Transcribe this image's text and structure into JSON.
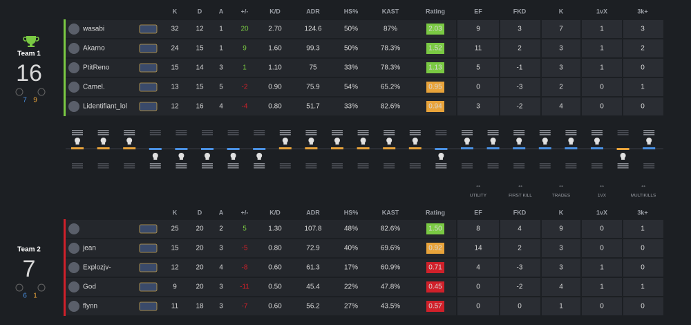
{
  "headers": [
    "K",
    "D",
    "A",
    "+/-",
    "K/D",
    "ADR",
    "HS%",
    "KAST",
    "Rating",
    "EF",
    "FKD",
    "K",
    "1vX",
    "3k+"
  ],
  "categories": [
    "UTILITY",
    "FIRST KILL",
    "TRADES",
    "1VX",
    "MULTIKILLS"
  ],
  "teams": [
    {
      "name": "Team 1",
      "score": "16",
      "side_scores": [
        "7",
        "9"
      ],
      "bar_color": "#7ac943",
      "players": [
        {
          "name": "wasabi",
          "stats": [
            "32",
            "12",
            "1",
            "20",
            "2.70",
            "124.6",
            "50%",
            "87%",
            "2.03",
            "9",
            "3",
            "7",
            "1",
            "3"
          ],
          "rating_color": "#7ac943"
        },
        {
          "name": "Akarno",
          "stats": [
            "24",
            "15",
            "1",
            "9",
            "1.60",
            "99.3",
            "50%",
            "78.3%",
            "1.52",
            "11",
            "2",
            "3",
            "1",
            "2"
          ],
          "rating_color": "#7ac943"
        },
        {
          "name": "PtitReno",
          "stats": [
            "15",
            "14",
            "3",
            "1",
            "1.10",
            "75",
            "33%",
            "78.3%",
            "1.13",
            "5",
            "-1",
            "3",
            "1",
            "0"
          ],
          "rating_color": "#7ac943"
        },
        {
          "name": "Camel.",
          "stats": [
            "13",
            "15",
            "5",
            "-2",
            "0.90",
            "75.9",
            "54%",
            "65.2%",
            "0.95",
            "0",
            "-3",
            "2",
            "0",
            "1"
          ],
          "rating_color": "#e8a33a"
        },
        {
          "name": "Lidentifiant_lol",
          "stats": [
            "12",
            "16",
            "4",
            "-4",
            "0.80",
            "51.7",
            "33%",
            "82.6%",
            "0.94",
            "3",
            "-2",
            "4",
            "0",
            "0"
          ],
          "rating_color": "#e8a33a"
        }
      ]
    },
    {
      "name": "Team 2",
      "score": "7",
      "side_scores": [
        "6",
        "1"
      ],
      "bar_color": "#d0202a",
      "players": [
        {
          "stats": [
            "25",
            "20",
            "2",
            "5",
            "1.30",
            "107.8",
            "48%",
            "82.6%",
            "1.50",
            "8",
            "4",
            "9",
            "0",
            "1"
          ],
          "rating_color": "#7ac943"
        },
        {
          "name": "jean",
          "stats": [
            "15",
            "20",
            "3",
            "-5",
            "0.80",
            "72.9",
            "40%",
            "69.6%",
            "0.92",
            "14",
            "2",
            "3",
            "0",
            "0"
          ],
          "rating_color": "#e8a33a"
        },
        {
          "name": "Explozjv-",
          "stats": [
            "12",
            "20",
            "4",
            "-8",
            "0.60",
            "61.3",
            "17%",
            "60.9%",
            "0.71",
            "4",
            "-3",
            "3",
            "1",
            "0"
          ],
          "rating_color": "#d0202a"
        },
        {
          "name": "God",
          "stats": [
            "9",
            "20",
            "3",
            "-11",
            "0.50",
            "45.4",
            "22%",
            "47.8%",
            "0.45",
            "0",
            "-2",
            "4",
            "1",
            "1"
          ],
          "rating_color": "#d0202a"
        },
        {
          "name": "flynn",
          "stats": [
            "11",
            "18",
            "3",
            "-7",
            "0.60",
            "56.2",
            "27%",
            "43.5%",
            "0.57",
            "0",
            "0",
            "1",
            "0",
            "0"
          ],
          "rating_color": "#d0202a"
        }
      ]
    }
  ],
  "rounds": [
    {
      "winner": 1,
      "color": "#e8a33a"
    },
    {
      "winner": 1,
      "color": "#e8a33a"
    },
    {
      "winner": 1,
      "color": "#e8a33a"
    },
    {
      "winner": 2,
      "color": "#4a90e2"
    },
    {
      "winner": 2,
      "color": "#4a90e2"
    },
    {
      "winner": 2,
      "color": "#4a90e2"
    },
    {
      "winner": 2,
      "color": "#4a90e2"
    },
    {
      "winner": 2,
      "color": "#4a90e2"
    },
    {
      "winner": 1,
      "color": "#e8a33a"
    },
    {
      "winner": 1,
      "color": "#e8a33a"
    },
    {
      "winner": 1,
      "color": "#e8a33a"
    },
    {
      "winner": 1,
      "color": "#e8a33a"
    },
    {
      "winner": 1,
      "color": "#e8a33a"
    },
    {
      "winner": 1,
      "color": "#e8a33a"
    },
    {
      "winner": 2,
      "color": "#4a90e2"
    },
    {
      "winner": 1,
      "color": "#4a90e2"
    },
    {
      "winner": 1,
      "color": "#4a90e2"
    },
    {
      "winner": 1,
      "color": "#4a90e2"
    },
    {
      "winner": 1,
      "color": "#4a90e2"
    },
    {
      "winner": 1,
      "color": "#4a90e2"
    },
    {
      "winner": 1,
      "color": "#4a90e2"
    },
    {
      "winner": 2,
      "color": "#e8a33a"
    },
    {
      "winner": 1,
      "color": "#4a90e2"
    }
  ]
}
